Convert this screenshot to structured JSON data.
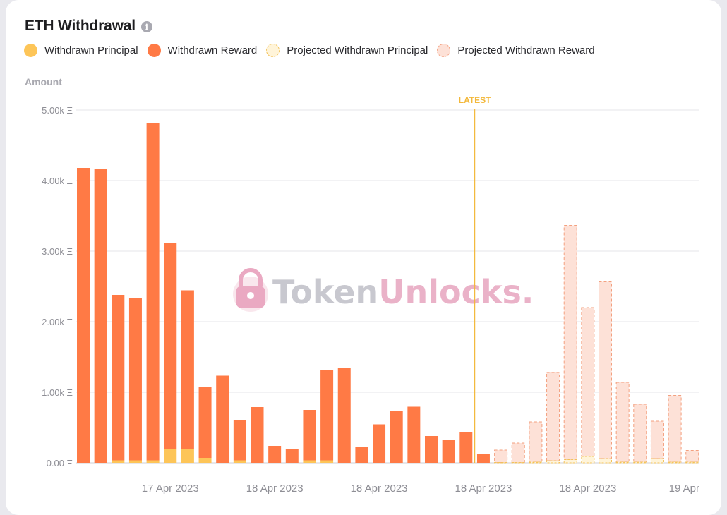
{
  "header": {
    "title": "ETH Withdrawal",
    "info_icon": "info-icon"
  },
  "legend": [
    {
      "label": "Withdrawn Principal",
      "color": "#fdc558",
      "style": "solid"
    },
    {
      "label": "Withdrawn Reward",
      "color": "#ff7a45",
      "style": "solid"
    },
    {
      "label": "Projected Withdrawn Principal",
      "color": "#fff4d9",
      "style": "dashed"
    },
    {
      "label": "Projected Withdrawn Reward",
      "color": "#fde1d7",
      "style": "dashed"
    }
  ],
  "watermark": {
    "part1": "Token",
    "part2": "Unlocks."
  },
  "chart_data": {
    "type": "bar",
    "stacked": true,
    "ylabel": "Amount",
    "ylim": [
      0,
      5000
    ],
    "yticks": [
      0,
      1000,
      2000,
      3000,
      4000,
      5000
    ],
    "ytick_labels": [
      "0.00 Ξ",
      "1.00k Ξ",
      "2.00k Ξ",
      "3.00k Ξ",
      "4.00k Ξ",
      "5.00k Ξ"
    ],
    "xtick_labels": [
      "17 Apr 2023",
      "18 Apr 2023",
      "18 Apr 2023",
      "18 Apr 2023",
      "18 Apr 2023",
      "19 Apr"
    ],
    "xtick_bar_index": [
      5,
      11,
      17,
      23,
      29,
      35
    ],
    "grid": true,
    "latest_marker": {
      "label": "LATEST",
      "after_bar_index": 22
    },
    "series": [
      {
        "name": "Withdrawn Principal",
        "values": [
          0,
          0,
          35,
          35,
          35,
          200,
          200,
          70,
          0,
          35,
          0,
          0,
          0,
          35,
          35,
          0,
          0,
          0,
          0,
          0,
          0,
          0,
          0,
          null,
          null,
          null,
          null,
          null,
          null,
          null,
          null,
          null,
          null,
          null,
          null,
          null
        ]
      },
      {
        "name": "Withdrawn Reward",
        "values": [
          4180,
          4160,
          2345,
          2305,
          4775,
          2910,
          2245,
          1010,
          1235,
          565,
          790,
          240,
          190,
          715,
          1285,
          1345,
          230,
          545,
          735,
          795,
          380,
          320,
          440,
          120,
          null,
          null,
          null,
          null,
          null,
          null,
          null,
          null,
          null,
          null,
          null,
          null
        ]
      },
      {
        "name": "Projected Withdrawn Principal",
        "values": [
          null,
          null,
          null,
          null,
          null,
          null,
          null,
          null,
          null,
          null,
          null,
          null,
          null,
          null,
          null,
          null,
          null,
          null,
          null,
          null,
          null,
          null,
          null,
          null,
          5,
          5,
          10,
          30,
          45,
          90,
          60,
          10,
          10,
          60,
          10,
          10
        ]
      },
      {
        "name": "Projected Withdrawn Reward",
        "values": [
          null,
          null,
          null,
          null,
          null,
          null,
          null,
          null,
          null,
          null,
          null,
          null,
          null,
          null,
          null,
          null,
          null,
          null,
          null,
          null,
          null,
          null,
          null,
          null,
          175,
          275,
          570,
          1250,
          3320,
          2110,
          2505,
          1130,
          820,
          530,
          945,
          165
        ]
      }
    ],
    "colors": {
      "principal": "#fdc558",
      "reward": "#ff7a45",
      "proj_principal_fill": "#fff4d9",
      "proj_principal_stroke": "#f2c25a",
      "proj_reward_fill": "#fde1d7",
      "proj_reward_stroke": "#f3a07f",
      "latest": "#f3b83a",
      "grid": "#e6e6ea",
      "axis_text": "#8e8e95"
    }
  }
}
